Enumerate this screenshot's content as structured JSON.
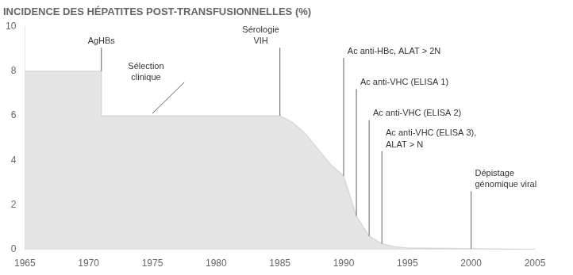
{
  "chart_data": {
    "type": "area",
    "title": "INCIDENCE DES HÉPATITES POST-TRANSFUSIONNELLES (%)",
    "x": [
      1965,
      1970,
      1971,
      1971,
      1975,
      1984,
      1985,
      1986,
      1987,
      1988,
      1989,
      1990,
      1991,
      1992,
      1993,
      1994,
      1995,
      2000,
      2005
    ],
    "values": [
      8.0,
      8.0,
      8.0,
      6.0,
      6.0,
      6.0,
      6.0,
      5.7,
      5.2,
      4.5,
      3.8,
      3.3,
      1.5,
      0.6,
      0.25,
      0.12,
      0.07,
      0.03,
      0.0
    ],
    "xlim": [
      1965,
      2005
    ],
    "ylim": [
      0,
      10
    ],
    "xticks": [
      1965,
      1970,
      1975,
      1980,
      1985,
      1990,
      1995,
      2000,
      2005
    ],
    "yticks": [
      0,
      2,
      4,
      6,
      8,
      10
    ],
    "grid": false,
    "annotations": [
      {
        "text": "AgHBs",
        "x": 1971.0,
        "y": 9.15,
        "line_x": [
          1971,
          1971
        ],
        "line_y": [
          8.0,
          9.05
        ]
      },
      {
        "text": "Sélection\nclinique",
        "x": 1974.5,
        "y": 7.5,
        "line_x": [
          1977.5,
          1975
        ],
        "line_y": [
          7.5,
          6.1
        ]
      },
      {
        "text": "Sérologie\nVIH",
        "x": 1983.5,
        "y": 9.15,
        "line_x": [
          1985,
          1985
        ],
        "line_y": [
          6.0,
          9.05
        ]
      },
      {
        "text": "Ac anti-HBc, ALAT > 2N",
        "x": 1990.3,
        "y": 8.7,
        "line_x": [
          1990,
          1990
        ],
        "line_y": [
          3.3,
          8.6
        ]
      },
      {
        "text": "Ac anti-VHC (ELISA 1)",
        "x": 1991.3,
        "y": 7.3,
        "line_x": [
          1991,
          1991
        ],
        "line_y": [
          1.5,
          7.2
        ]
      },
      {
        "text": "Ac anti-VHC (ELISA 2)",
        "x": 1992.3,
        "y": 5.9,
        "line_x": [
          1992,
          1992
        ],
        "line_y": [
          0.6,
          5.8
        ]
      },
      {
        "text": "Ac anti-VHC (ELISA 3),\nALAT > N",
        "x": 1993.3,
        "y": 4.5,
        "line_x": [
          1993,
          1993
        ],
        "line_y": [
          0.25,
          4.4
        ]
      },
      {
        "text": "Dépistage\ngénomique viral",
        "x": 2000.3,
        "y": 2.7,
        "line_x": [
          2000,
          2000
        ],
        "line_y": [
          0.03,
          2.6
        ]
      }
    ]
  }
}
